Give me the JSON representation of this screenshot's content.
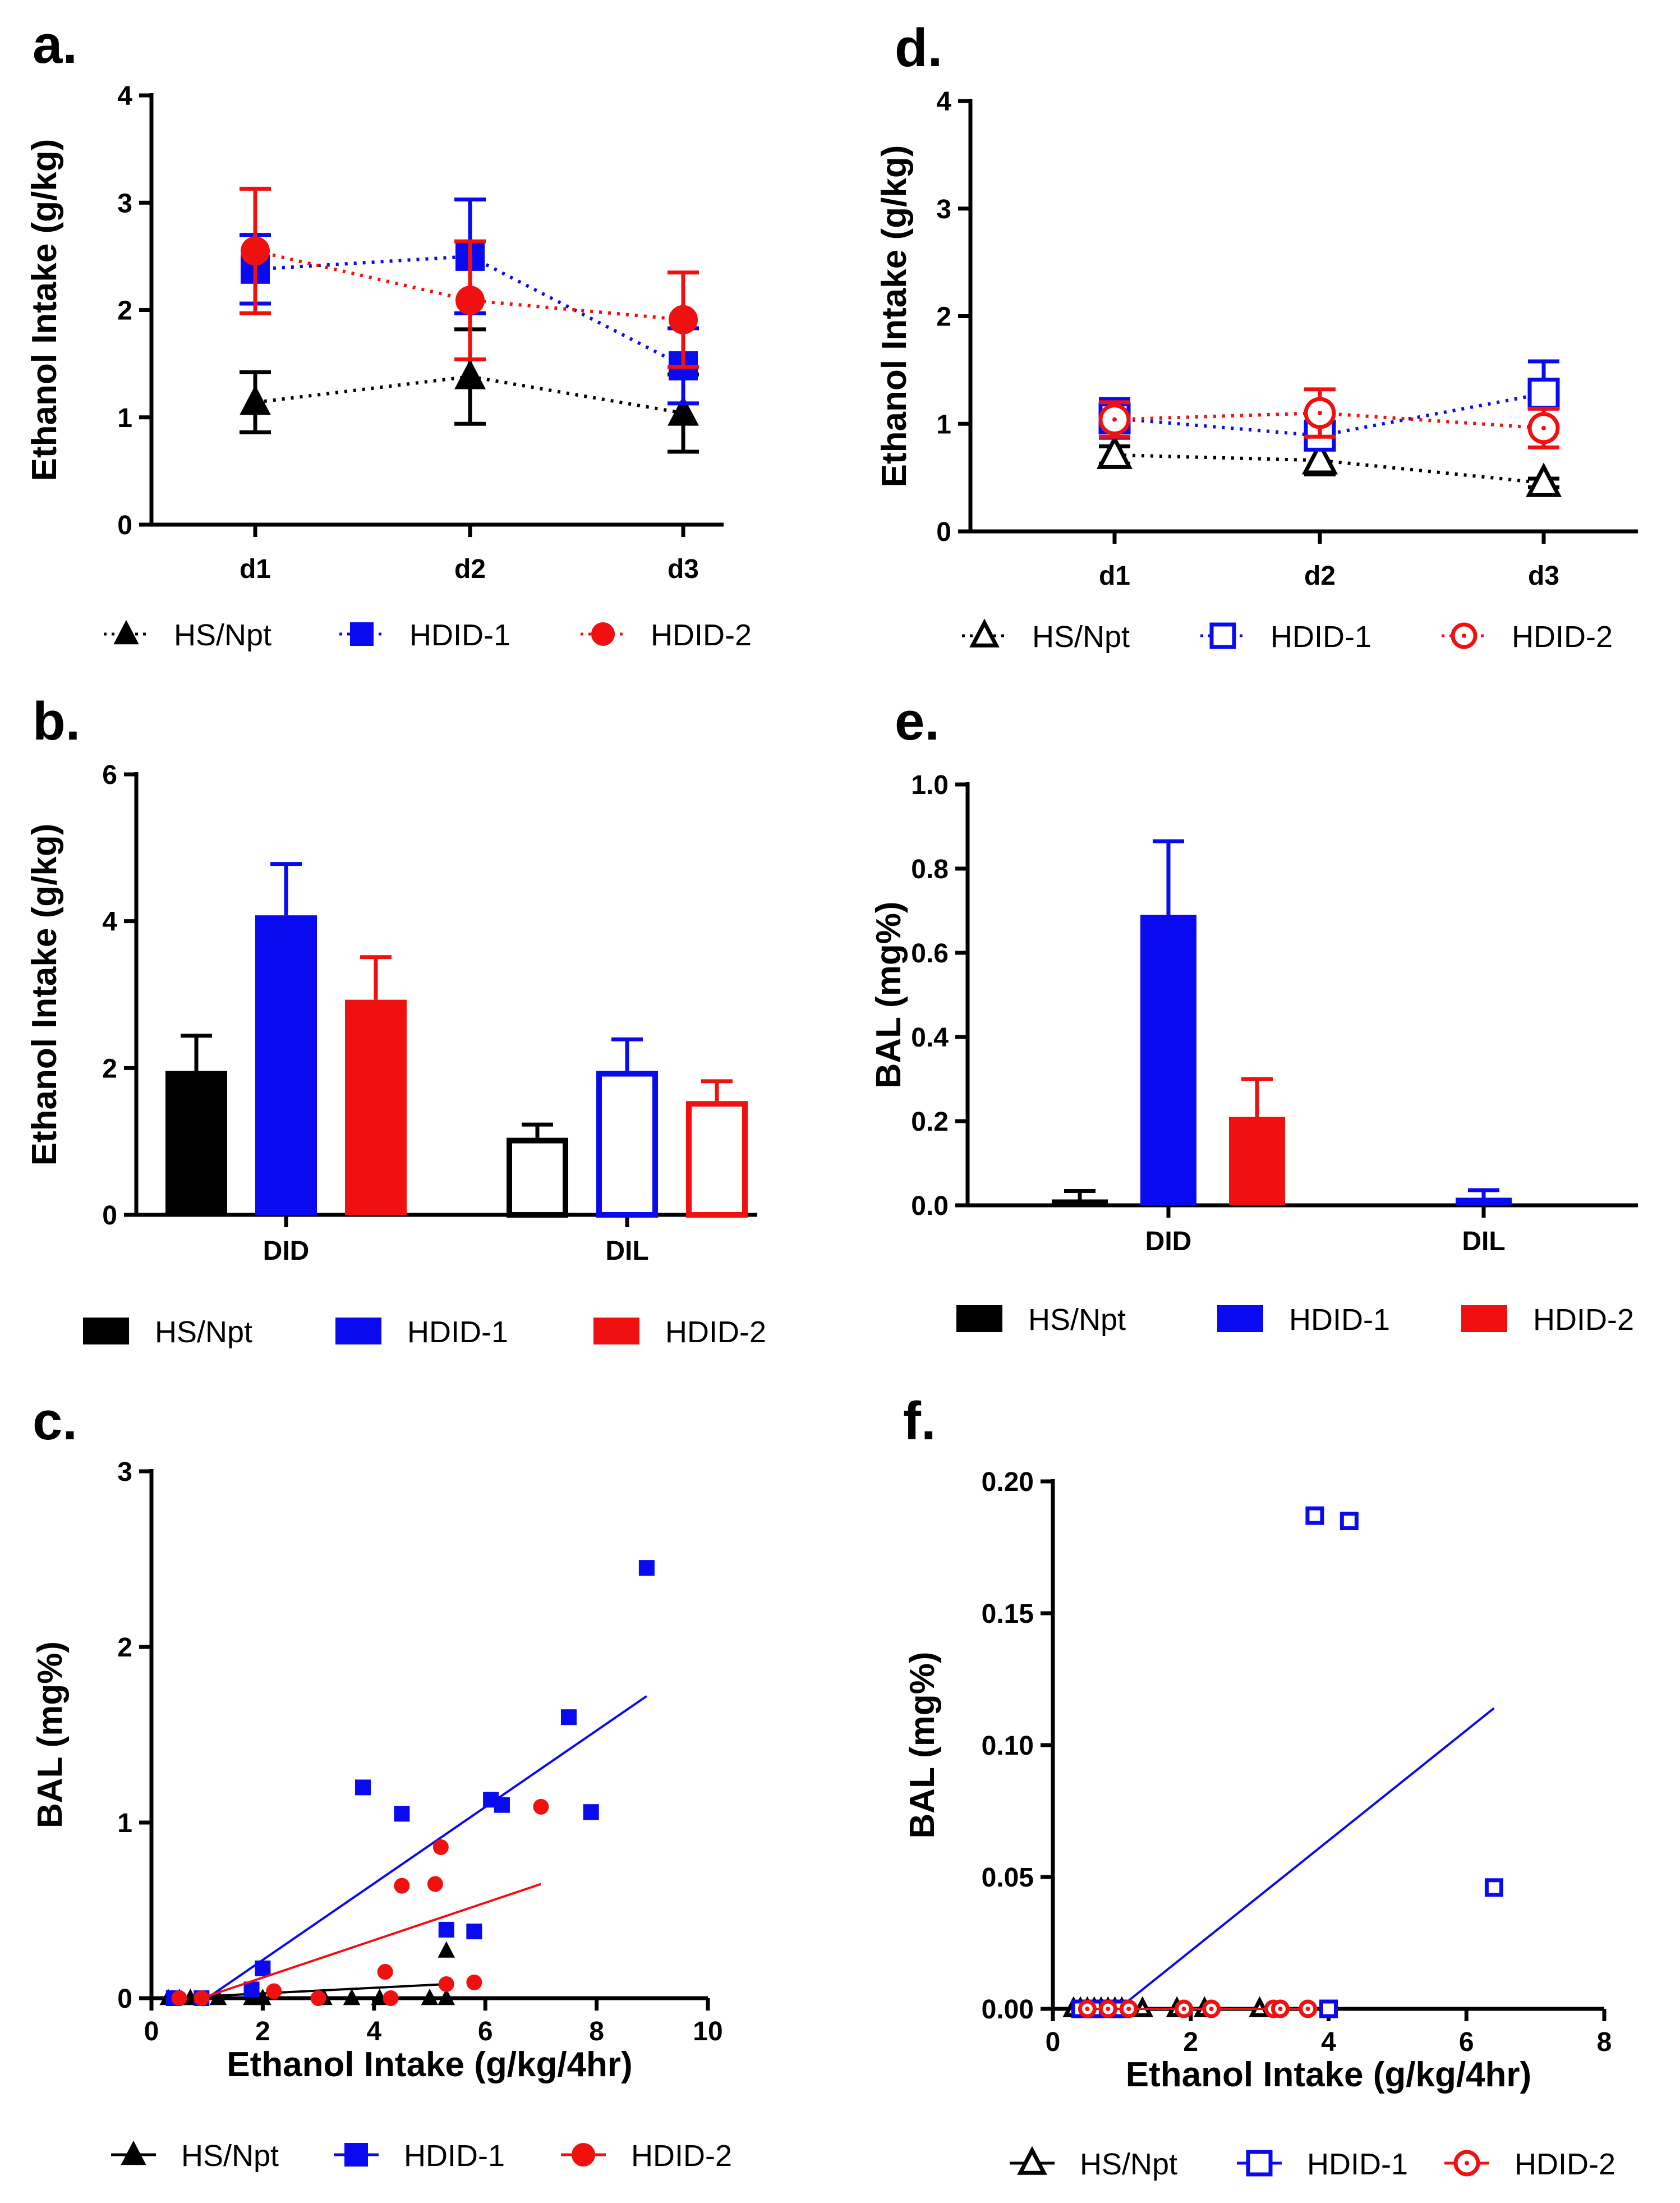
{
  "colors": {
    "HS/Npt": "#000000",
    "HDID-1": "#0a0af0",
    "HDID-2": "#f01010"
  },
  "chart_data": [
    {
      "panel": "a.",
      "type": "line",
      "ylabel": "Ethanol Intake (g/kg)",
      "xlabel": "",
      "categories": [
        "d1",
        "d2",
        "d3"
      ],
      "ylim": [
        0,
        4
      ],
      "yticks": [
        "0",
        "1",
        "2",
        "3",
        "4"
      ],
      "marker_fill": "filled",
      "series": [
        {
          "name": "HS/Npt",
          "marker": "triangle",
          "values": [
            1.14,
            1.38,
            1.04
          ],
          "errors": [
            0.28,
            0.44,
            0.36
          ]
        },
        {
          "name": "HDID-1",
          "marker": "square",
          "values": [
            2.38,
            2.5,
            1.48
          ],
          "errors": [
            0.32,
            0.53,
            0.35
          ]
        },
        {
          "name": "HDID-2",
          "marker": "circle",
          "values": [
            2.55,
            2.09,
            1.91
          ],
          "errors": [
            0.58,
            0.55,
            0.44
          ]
        }
      ],
      "legend": [
        "HS/Npt",
        "HDID-1",
        "HDID-2"
      ]
    },
    {
      "panel": "b.",
      "type": "bar",
      "ylabel": "Ethanol Intake (g/kg)",
      "categories": [
        "DID",
        "DIL"
      ],
      "ylim": [
        0,
        6
      ],
      "yticks": [
        "0",
        "2",
        "4",
        "6"
      ],
      "series": [
        {
          "name": "HS/Npt",
          "values": [
            1.96,
            1.05
          ],
          "errors": [
            0.48,
            0.18
          ]
        },
        {
          "name": "HDID-1",
          "values": [
            4.08,
            1.96
          ],
          "errors": [
            0.7,
            0.43
          ]
        },
        {
          "name": "HDID-2",
          "values": [
            2.93,
            1.55
          ],
          "errors": [
            0.58,
            0.27
          ]
        }
      ],
      "dil_fill": "open",
      "legend": [
        "HS/Npt",
        "HDID-1",
        "HDID-2"
      ]
    },
    {
      "panel": "c.",
      "type": "scatter",
      "ylabel": "BAL (mg%)",
      "xlabel": "Ethanol Intake (g/kg/4hr)",
      "xlim": [
        0,
        10
      ],
      "ylim": [
        0,
        3
      ],
      "xticks": [
        "0",
        "2",
        "4",
        "6",
        "8",
        "10"
      ],
      "yticks": [
        "0",
        "1",
        "2",
        "3"
      ],
      "marker_fill": "filled",
      "series": [
        {
          "name": "HS/Npt",
          "marker": "triangle",
          "x": [
            0.3,
            0.5,
            0.7,
            1.2,
            1.8,
            2.0,
            3.1,
            3.6,
            4.1,
            5.0,
            5.3,
            5.3
          ],
          "y": [
            0,
            0,
            0,
            0,
            0,
            0,
            0,
            0,
            0,
            0,
            0,
            0.27
          ],
          "fit": [
            [
              0.3,
              0.0
            ],
            [
              5.3,
              0.08
            ]
          ]
        },
        {
          "name": "HDID-1",
          "marker": "square",
          "x": [
            0.4,
            0.9,
            1.8,
            2.0,
            3.8,
            4.5,
            5.3,
            5.8,
            6.1,
            6.3,
            7.5,
            7.9,
            8.9
          ],
          "y": [
            0,
            0,
            0.05,
            0.17,
            1.2,
            1.05,
            0.39,
            0.38,
            1.13,
            1.1,
            1.6,
            1.06,
            2.45
          ],
          "fit": [
            [
              1.0,
              0.0
            ],
            [
              8.9,
              1.72
            ]
          ]
        },
        {
          "name": "HDID-2",
          "marker": "circle",
          "x": [
            0.5,
            0.9,
            2.2,
            3.0,
            4.2,
            4.3,
            4.5,
            5.1,
            5.2,
            5.3,
            5.8,
            7.0
          ],
          "y": [
            0,
            0,
            0.04,
            0,
            0.15,
            0,
            0.64,
            0.65,
            0.86,
            0.08,
            0.09,
            1.09
          ],
          "fit": [
            [
              0.9,
              0.0
            ],
            [
              7.0,
              0.65
            ]
          ]
        }
      ],
      "legend": [
        "HS/Npt",
        "HDID-1",
        "HDID-2"
      ]
    },
    {
      "panel": "d.",
      "type": "line",
      "ylabel": "Ethanol Intake (g/kg)",
      "xlabel": "",
      "categories": [
        "d1",
        "d2",
        "d3"
      ],
      "ylim": [
        0,
        4
      ],
      "yticks": [
        "0",
        "1",
        "2",
        "3",
        "4"
      ],
      "marker_fill": "open",
      "series": [
        {
          "name": "HS/Npt",
          "marker": "triangle",
          "values": [
            0.71,
            0.66,
            0.45
          ],
          "errors": [
            0.08,
            0.13,
            0.04
          ]
        },
        {
          "name": "HDID-1",
          "marker": "square",
          "values": [
            1.05,
            0.89,
            1.28
          ],
          "errors": [
            0.18,
            0.1,
            0.3
          ]
        },
        {
          "name": "HDID-2",
          "marker": "circle",
          "values": [
            1.04,
            1.1,
            0.96
          ],
          "errors": [
            0.16,
            0.22,
            0.18
          ]
        }
      ],
      "legend": [
        "HS/Npt",
        "HDID-1",
        "HDID-2"
      ]
    },
    {
      "panel": "e.",
      "type": "bar",
      "ylabel": "BAL (mg%)",
      "categories": [
        "DID",
        "DIL"
      ],
      "ylim": [
        0,
        1.0
      ],
      "yticks": [
        "0.0",
        "0.2",
        "0.4",
        "0.6",
        "0.8",
        "1.0"
      ],
      "series": [
        {
          "name": "HS/Npt",
          "values": [
            0.014,
            0.003
          ],
          "errors": [
            0.02,
            0.0
          ]
        },
        {
          "name": "HDID-1",
          "values": [
            0.69,
            0.018
          ],
          "errors": [
            0.175,
            0.018
          ]
        },
        {
          "name": "HDID-2",
          "values": [
            0.21,
            0.0
          ],
          "errors": [
            0.09,
            0.0
          ]
        }
      ],
      "dil_fill": "filled",
      "legend": [
        "HS/Npt",
        "HDID-1",
        "HDID-2"
      ]
    },
    {
      "panel": "f.",
      "type": "scatter",
      "ylabel": "BAL (mg%)",
      "xlabel": "Ethanol Intake (g/kg/4hr)",
      "xlim": [
        0,
        8
      ],
      "ylim": [
        0,
        0.2
      ],
      "xticks": [
        "0",
        "2",
        "4",
        "6",
        "8"
      ],
      "yticks": [
        "0.00",
        "0.05",
        "0.10",
        "0.15",
        "0.20"
      ],
      "marker_fill": "open",
      "series": [
        {
          "name": "HS/Npt",
          "marker": "triangle",
          "x": [
            0.3,
            0.4,
            0.5,
            0.6,
            0.7,
            0.8,
            0.9,
            1.0,
            1.3,
            1.8,
            2.2,
            3.0
          ],
          "y": [
            0,
            0,
            0,
            0,
            0,
            0,
            0,
            0,
            0,
            0,
            0,
            0
          ],
          "fit": [
            [
              0.3,
              0.0
            ],
            [
              3.0,
              0.0
            ]
          ]
        },
        {
          "name": "HDID-1",
          "marker": "square",
          "x": [
            0.4,
            0.6,
            0.8,
            1.0,
            3.8,
            4.0,
            4.3,
            6.4
          ],
          "y": [
            0,
            0,
            0,
            0,
            0.187,
            0,
            0.185,
            0.046
          ],
          "fit": [
            [
              0.95,
              0.0
            ],
            [
              6.4,
              0.114
            ]
          ]
        },
        {
          "name": "HDID-2",
          "marker": "circle",
          "x": [
            0.5,
            0.8,
            1.1,
            1.9,
            2.3,
            3.2,
            3.3,
            3.7
          ],
          "y": [
            0,
            0,
            0,
            0,
            0,
            0,
            0,
            0
          ],
          "fit": [
            [
              0.5,
              0.0
            ],
            [
              3.7,
              0.0
            ]
          ]
        }
      ],
      "legend": [
        "HS/Npt",
        "HDID-1",
        "HDID-2"
      ]
    }
  ]
}
